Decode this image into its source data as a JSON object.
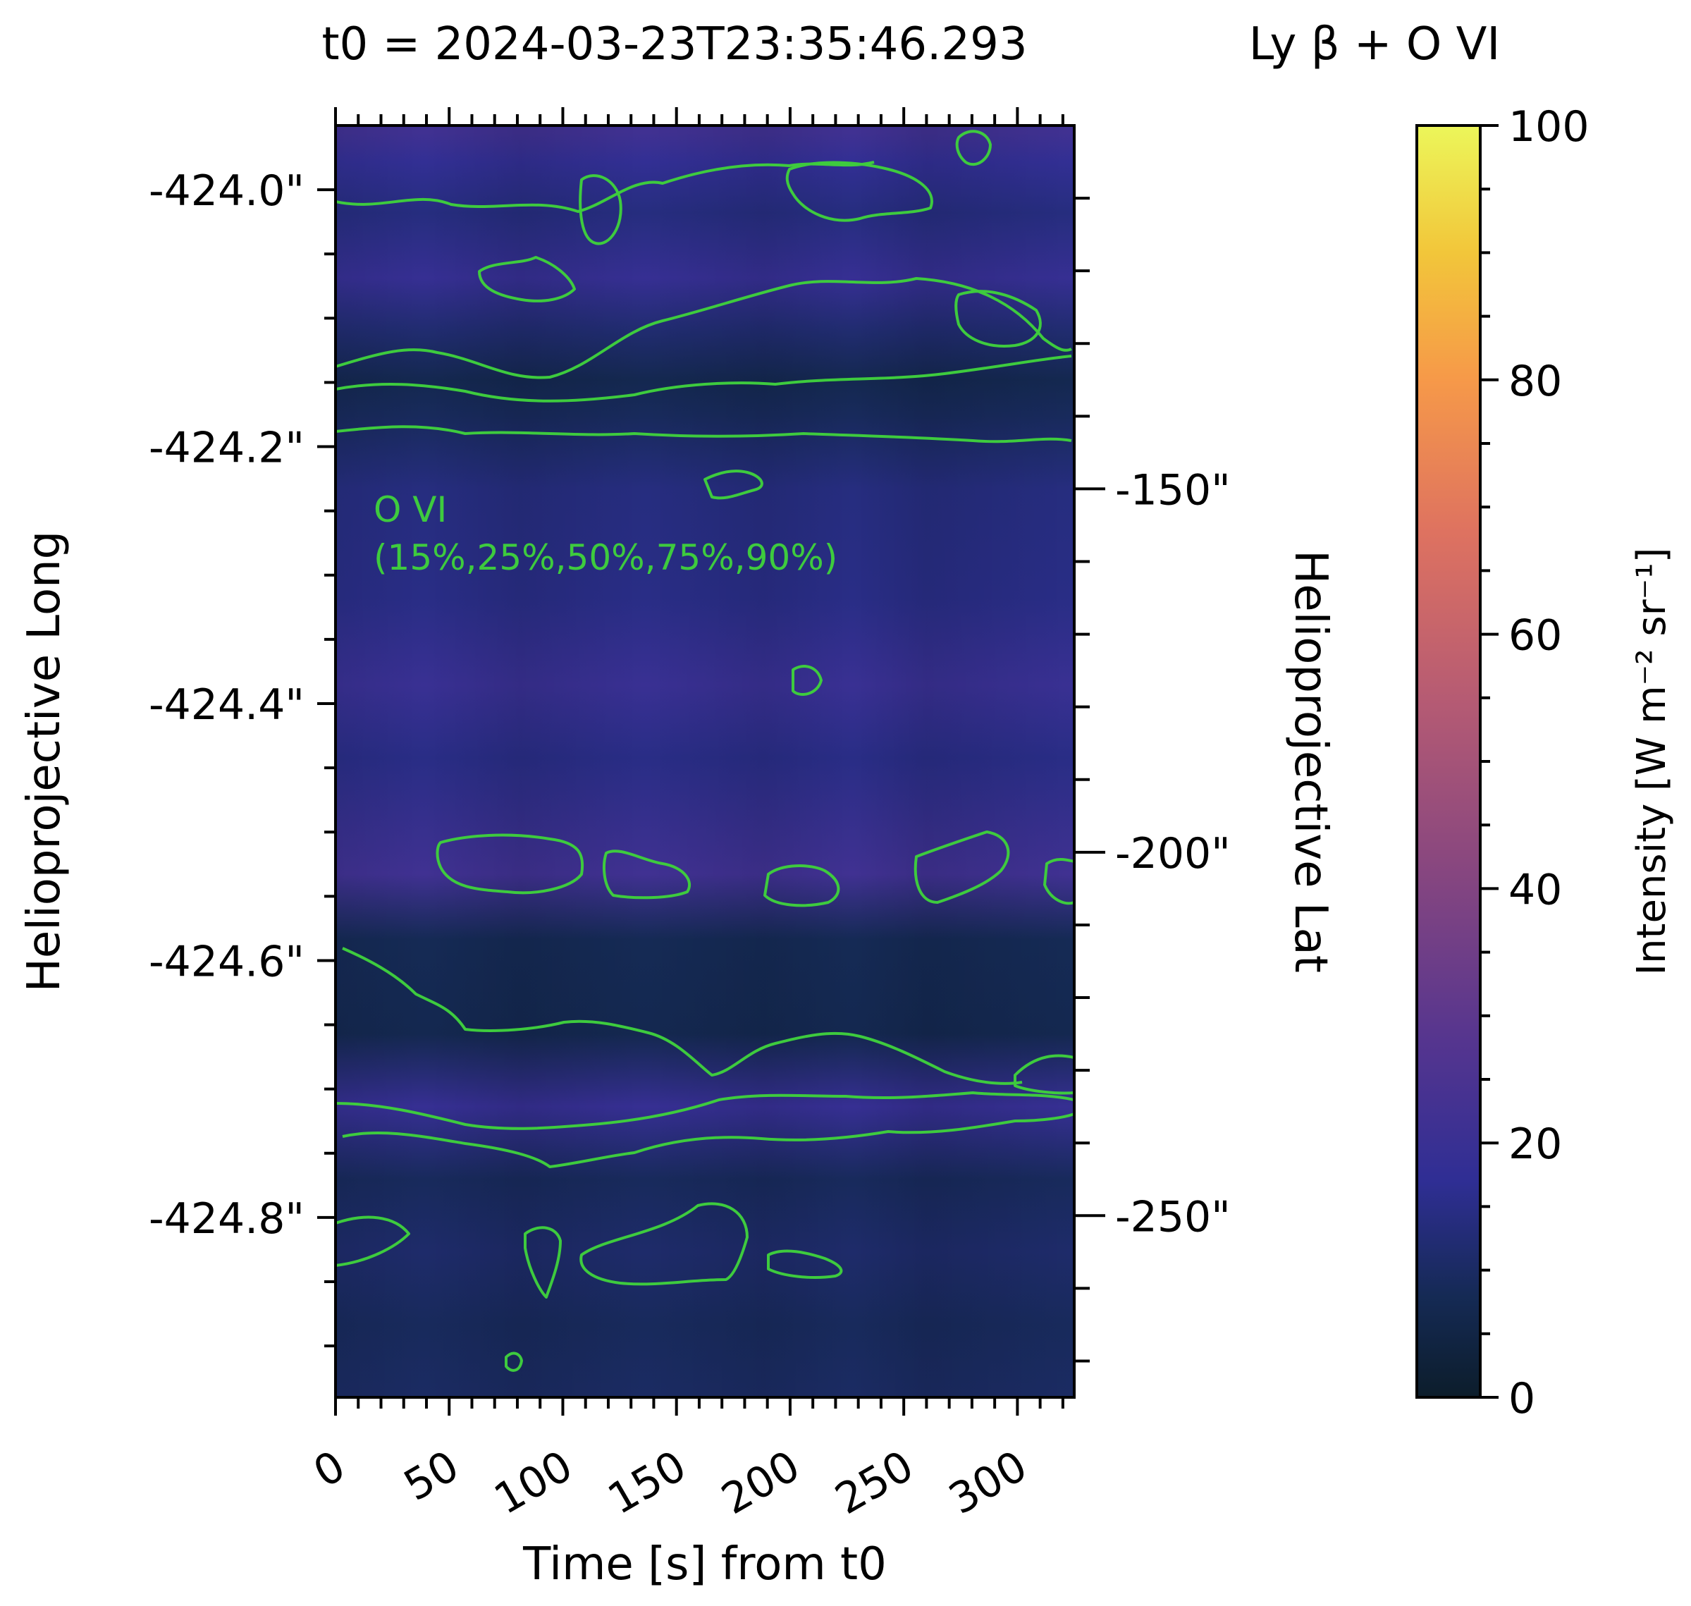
{
  "chart_data": {
    "type": "heatmap",
    "title_left": "t0 = 2024-03-23T23:35:46.293",
    "title_right": "Ly β + O VI",
    "xlabel": "Time [s] from t0",
    "ylabel_left": "Helioprojective Long",
    "ylabel_right": "Helioprojective Lat",
    "colorbar_label": "Intensity [W m⁻² sr⁻¹]",
    "colormap": "plasma-like (dark navy → indigo → magenta → orange → yellow)",
    "xlim": [
      0,
      325
    ],
    "x_ticks": [
      0,
      50,
      100,
      150,
      200,
      250,
      300
    ],
    "x_tick_labels": [
      "0",
      "50",
      "100",
      "150",
      "200",
      "250",
      "300"
    ],
    "ylim_left": [
      -424.94,
      -423.95
    ],
    "y_left_ticks": [
      -424.0,
      -424.2,
      -424.4,
      -424.6,
      -424.8
    ],
    "y_left_tick_labels": [
      "-424.0\"",
      "-424.2\"",
      "-424.4\"",
      "-424.6\"",
      "-424.8\""
    ],
    "ylim_right": [
      -100,
      -275
    ],
    "y_right_ticks": [
      -150,
      -200,
      -250
    ],
    "y_right_tick_labels": [
      "-150\"",
      "-200\"",
      "-250\""
    ],
    "colorbar_range": [
      0,
      100
    ],
    "colorbar_ticks": [
      0,
      20,
      40,
      60,
      80,
      100
    ],
    "colorbar_tick_labels": [
      "0",
      "20",
      "40",
      "60",
      "80",
      "100"
    ],
    "contour_label_line1": "O VI",
    "contour_label_line2": "(15%,25%,50%,75%,90%)",
    "contour_color": "#3ecb3e",
    "intensity_bands": [
      {
        "lat": -101,
        "intensity": 22
      },
      {
        "lat": -105,
        "intensity": 18
      },
      {
        "lat": -112,
        "intensity": 14
      },
      {
        "lat": -121,
        "intensity": 19
      },
      {
        "lat": -128,
        "intensity": 12
      },
      {
        "lat": -135,
        "intensity": 7
      },
      {
        "lat": -140,
        "intensity": 9
      },
      {
        "lat": -150,
        "intensity": 14
      },
      {
        "lat": -165,
        "intensity": 15
      },
      {
        "lat": -177,
        "intensity": 20
      },
      {
        "lat": -187,
        "intensity": 15
      },
      {
        "lat": -203,
        "intensity": 22
      },
      {
        "lat": -212,
        "intensity": 8
      },
      {
        "lat": -225,
        "intensity": 7
      },
      {
        "lat": -235,
        "intensity": 19
      },
      {
        "lat": -245,
        "intensity": 9
      },
      {
        "lat": -255,
        "intensity": 11
      },
      {
        "lat": -265,
        "intensity": 9
      },
      {
        "lat": -275,
        "intensity": 10
      }
    ]
  }
}
